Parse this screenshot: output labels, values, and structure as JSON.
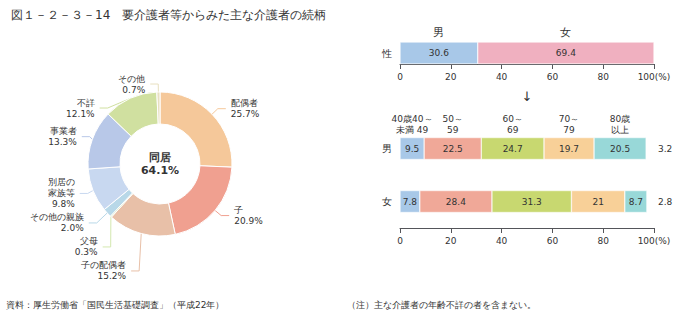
{
  "chart_data": [
    {
      "type": "pie",
      "title": "図１－２－３－14　要介護者等からみた主な介護者の続柄",
      "categories": [
        "配偶者",
        "子",
        "子の配偶者",
        "父母",
        "その他の親族",
        "別居の\n家族等",
        "事業者",
        "不詳",
        "その他"
      ],
      "values": [
        25.7,
        20.9,
        15.2,
        0.3,
        2.0,
        9.8,
        13.3,
        12.1,
        0.7
      ],
      "value_labels": [
        "25.7%",
        "20.9%",
        "15.2%",
        "0.3%",
        "2.0%",
        "9.8%",
        "13.3%",
        "12.1%",
        "0.7%"
      ],
      "colors": [
        "#f5c89a",
        "#f0a090",
        "#e8c0a8",
        "#d4e8b0",
        "#b8d8e8",
        "#c8d8f0",
        "#b8c8e8",
        "#d0e0a0",
        "#e8e0c0"
      ],
      "data_labels": true,
      "annotations": [
        "同居\n64.1%"
      ]
    },
    {
      "type": "bar",
      "orientation": "horizontal",
      "stacked": true,
      "categories": [
        "性"
      ],
      "series": [
        {
          "name": "男",
          "color": "#a8c8e8",
          "values": [
            30.6
          ]
        },
        {
          "name": "女",
          "color": "#f0b0c0",
          "values": [
            69.4
          ]
        }
      ],
      "xlim": [
        0,
        100
      ],
      "xticks": [
        0,
        20,
        40,
        60,
        80,
        {
          "value": 100,
          "label": "100(%)"
        }
      ],
      "grid": false,
      "data_labels": true,
      "annotations": [
        "↓"
      ]
    },
    {
      "type": "bar",
      "orientation": "horizontal",
      "stacked": true,
      "categories": [
        "男",
        "女"
      ],
      "series": [
        {
          "name": "40歳40～\n未満 49",
          "color": "#a8c8e8",
          "values": [
            9.5,
            7.8
          ]
        },
        {
          "name": "50～\n59",
          "color": "#f0a898",
          "values": [
            22.5,
            28.4
          ]
        },
        {
          "name": "60～\n69",
          "color": "#c8d870",
          "values": [
            24.7,
            31.3
          ]
        },
        {
          "name": "70～\n79",
          "color": "#f8d098",
          "values": [
            19.7,
            21.0
          ]
        },
        {
          "name": "80歳\n以上",
          "color": "#98d8d8",
          "values": [
            20.5,
            8.7
          ]
        }
      ],
      "xlim": [
        0,
        100
      ],
      "xticks": [
        0,
        20,
        40,
        60,
        80,
        {
          "value": 100,
          "label": "100(%)"
        }
      ],
      "grid": false,
      "data_labels": true,
      "annotations": [
        {
          "text": "3.2",
          "category": "男"
        },
        {
          "text": "2.8",
          "category": "女"
        }
      ],
      "notes": [
        "資料：厚生労働省「国民生活基礎調査」（平成22年）",
        "（注）主な介護者の年齢不詳の者を含まない。"
      ]
    }
  ]
}
